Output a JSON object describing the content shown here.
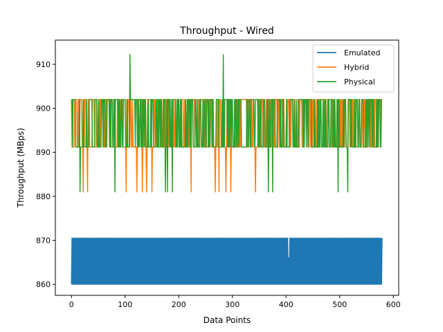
{
  "chart_data": {
    "type": "line",
    "title": "Throughput - Wired",
    "xlabel": "Data Points",
    "ylabel": "Throughput (MBps)",
    "xlim": [
      -30,
      610
    ],
    "ylim": [
      857.5,
      915.5
    ],
    "xticks": [
      0,
      100,
      200,
      300,
      400,
      500,
      600
    ],
    "yticks": [
      860,
      870,
      880,
      890,
      900,
      910
    ],
    "grid": false,
    "legend": "top-right",
    "series": [
      {
        "name": "Emulated",
        "color": "#1f77b4",
        "n_points": 580,
        "levels": [
          860,
          870.5
        ],
        "pattern": "alternating between the two levels at every data point",
        "values_sample": [
          860.0,
          870.5,
          860.0,
          870.5,
          860.0,
          870.5
        ],
        "outliers": [
          {
            "x": 405,
            "y": 866
          }
        ]
      },
      {
        "name": "Hybrid",
        "color": "#ff7f0e",
        "n_points": 580,
        "levels": [
          891.2,
          902
        ],
        "dips": [
          {
            "x": 22,
            "y": 881
          },
          {
            "x": 30,
            "y": 881
          },
          {
            "x": 102,
            "y": 881
          },
          {
            "x": 122,
            "y": 881
          },
          {
            "x": 132,
            "y": 881
          },
          {
            "x": 140,
            "y": 881
          },
          {
            "x": 150,
            "y": 881
          },
          {
            "x": 223,
            "y": 881
          },
          {
            "x": 268,
            "y": 881
          },
          {
            "x": 275,
            "y": 881
          },
          {
            "x": 288,
            "y": 881
          },
          {
            "x": 297,
            "y": 881
          },
          {
            "x": 343,
            "y": 881
          }
        ]
      },
      {
        "name": "Physical",
        "color": "#2ca02c",
        "n_points": 580,
        "levels": [
          891.2,
          902
        ],
        "spikes": [
          {
            "x": 109,
            "y": 912.2
          },
          {
            "x": 283,
            "y": 912.2
          }
        ],
        "dips": [
          {
            "x": 16,
            "y": 881
          },
          {
            "x": 81,
            "y": 881
          },
          {
            "x": 175,
            "y": 881
          },
          {
            "x": 179,
            "y": 881
          },
          {
            "x": 188,
            "y": 881
          },
          {
            "x": 367,
            "y": 881
          },
          {
            "x": 375,
            "y": 881
          },
          {
            "x": 497,
            "y": 881
          },
          {
            "x": 515,
            "y": 881
          }
        ]
      }
    ]
  }
}
